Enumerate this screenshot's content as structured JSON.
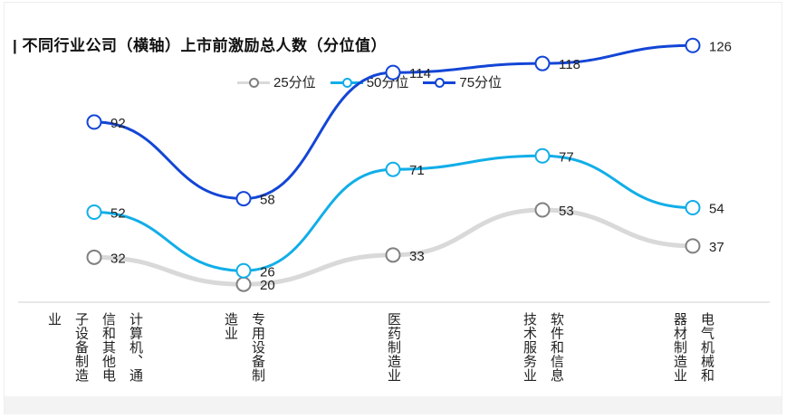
{
  "chart_data": {
    "type": "line",
    "title": "不同行业公司（横轴）上市前激励总人数（分位值）",
    "categories": [
      [
        "计算机、通",
        "信和其他电",
        "子设备制造",
        "业"
      ],
      [
        "专用设备制",
        "造业"
      ],
      [
        "医药制造业"
      ],
      [
        "软件和信息",
        "技术服务业"
      ],
      [
        "电气机械和",
        "器材制造业"
      ]
    ],
    "series": [
      {
        "name": "25分位",
        "values": [
          32,
          20,
          33,
          53,
          37
        ],
        "color": "#d9d9d9",
        "marker_color": "#808080"
      },
      {
        "name": "50分位",
        "values": [
          52,
          26,
          71,
          77,
          54
        ],
        "color": "#11aee8",
        "marker_color": "#11aee8"
      },
      {
        "name": "75分位",
        "values": [
          92,
          58,
          114,
          118,
          126
        ],
        "color": "#1346d6",
        "marker_color": "#1346d6"
      }
    ],
    "ylim": [
      0,
      140
    ],
    "xlabel": "",
    "ylabel": ""
  }
}
